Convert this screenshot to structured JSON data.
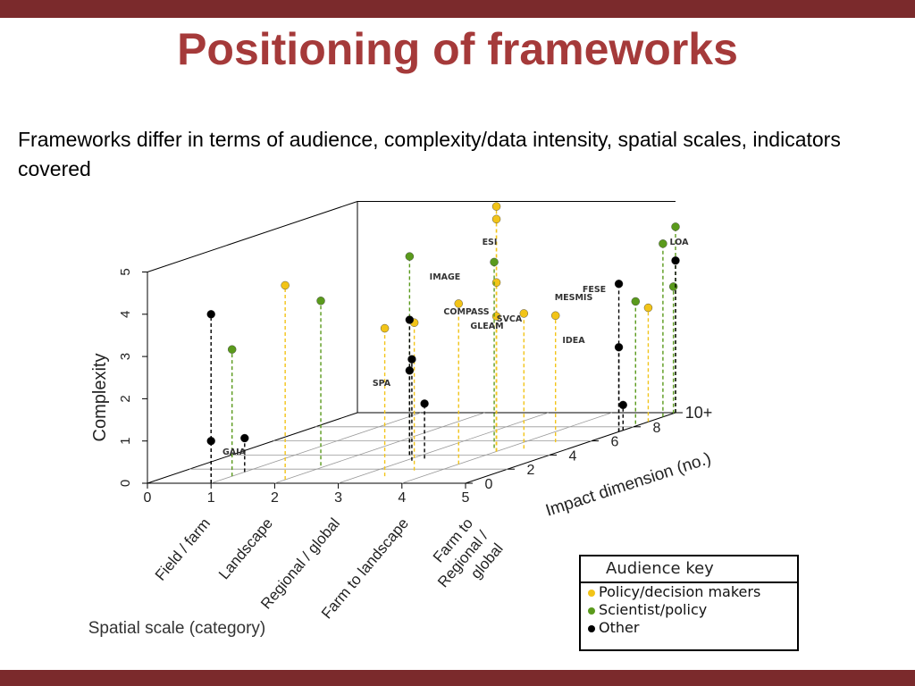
{
  "slide": {
    "title": "Positioning of frameworks",
    "subtitle": "Frameworks differ in terms of audience, complexity/data intensity, spatial scales, indicators covered"
  },
  "colors": {
    "bar": "#7b2a2c",
    "title": "#a53a3a",
    "policy": "#f2c418",
    "scientist": "#5a9a1c",
    "other": "#000000"
  },
  "legend": {
    "title": "Audience key",
    "items": [
      {
        "label": "Policy/decision makers",
        "color": "#f2c418"
      },
      {
        "label": "Scientist/policy",
        "color": "#5a9a1c"
      },
      {
        "label": "Other",
        "color": "#000000"
      }
    ]
  },
  "chart_data": {
    "type": "scatter",
    "title": "",
    "xlabel": "Spatial scale (category)",
    "ylabel": "Impact dimension (no.)",
    "zlabel": "Complexity",
    "x_ticks": [
      "0",
      "1",
      "2",
      "3",
      "4",
      "5"
    ],
    "x_categories": [
      "Field / farm",
      "Landscape",
      "Regional / global",
      "Farm to landscape",
      "Farm to Regional / global"
    ],
    "y_ticks": [
      "0",
      "2",
      "4",
      "6",
      "8",
      "10+"
    ],
    "z_ticks": [
      "0",
      "1",
      "2",
      "3",
      "4",
      "5"
    ],
    "xlim": [
      0,
      5
    ],
    "ylim": [
      0,
      10
    ],
    "zlim": [
      0,
      5
    ],
    "point_labels": [
      "ESI",
      "LOA",
      "IMAGE",
      "FESE",
      "MESMIS",
      "COMPASS",
      "SVCA",
      "GLEAM",
      "IDEA",
      "SPA",
      "GAIA"
    ],
    "series": [
      {
        "name": "Policy/decision makers",
        "points": [
          {
            "x": 2.0,
            "y": 0.5,
            "z": 4.6
          },
          {
            "x": 3.4,
            "y": 1.0,
            "z": 3.5
          },
          {
            "x": 3.6,
            "y": 1.8,
            "z": 3.5
          },
          {
            "x": 4.0,
            "y": 2.7,
            "z": 3.8
          },
          {
            "x": 4.0,
            "y": 4.5,
            "z": 5.8
          },
          {
            "x": 4.0,
            "y": 4.5,
            "z": 5.5
          },
          {
            "x": 4.0,
            "y": 4.5,
            "z": 4.0
          },
          {
            "x": 4.0,
            "y": 4.5,
            "z": 3.2
          },
          {
            "x": 4.3,
            "y": 4.9,
            "z": 3.2
          },
          {
            "x": 4.5,
            "y": 5.8,
            "z": 3.0
          },
          {
            "x": 5.0,
            "y": 8.7,
            "z": 2.7
          }
        ]
      },
      {
        "name": "Scientist/policy",
        "points": [
          {
            "x": 1.0,
            "y": 1.0,
            "z": 3.0
          },
          {
            "x": 1.9,
            "y": 2.5,
            "z": 3.9
          },
          {
            "x": 2.8,
            "y": 4.0,
            "z": 4.7
          },
          {
            "x": 3.8,
            "y": 5.0,
            "z": 4.4
          },
          {
            "x": 4.9,
            "y": 8.4,
            "z": 2.9
          },
          {
            "x": 5.0,
            "y": 9.4,
            "z": 4.1
          },
          {
            "x": 5.0,
            "y": 9.9,
            "z": 3.0
          },
          {
            "x": 5.0,
            "y": 10.0,
            "z": 4.4
          }
        ]
      },
      {
        "name": "Other",
        "points": [
          {
            "x": 1.0,
            "y": 0.0,
            "z": 1.0
          },
          {
            "x": 1.0,
            "y": 1.6,
            "z": 0.8
          },
          {
            "x": 1.0,
            "y": 0.0,
            "z": 4.0
          },
          {
            "x": 3.1,
            "y": 3.2,
            "z": 2.4
          },
          {
            "x": 3.2,
            "y": 3.5,
            "z": 1.3
          },
          {
            "x": 2.8,
            "y": 4.0,
            "z": 2.0
          },
          {
            "x": 2.8,
            "y": 4.0,
            "z": 3.2
          },
          {
            "x": 5.0,
            "y": 7.3,
            "z": 3.5
          },
          {
            "x": 5.0,
            "y": 7.5,
            "z": 0.6
          },
          {
            "x": 5.0,
            "y": 7.3,
            "z": 2.0
          },
          {
            "x": 5.0,
            "y": 10.0,
            "z": 3.6
          }
        ]
      }
    ]
  }
}
